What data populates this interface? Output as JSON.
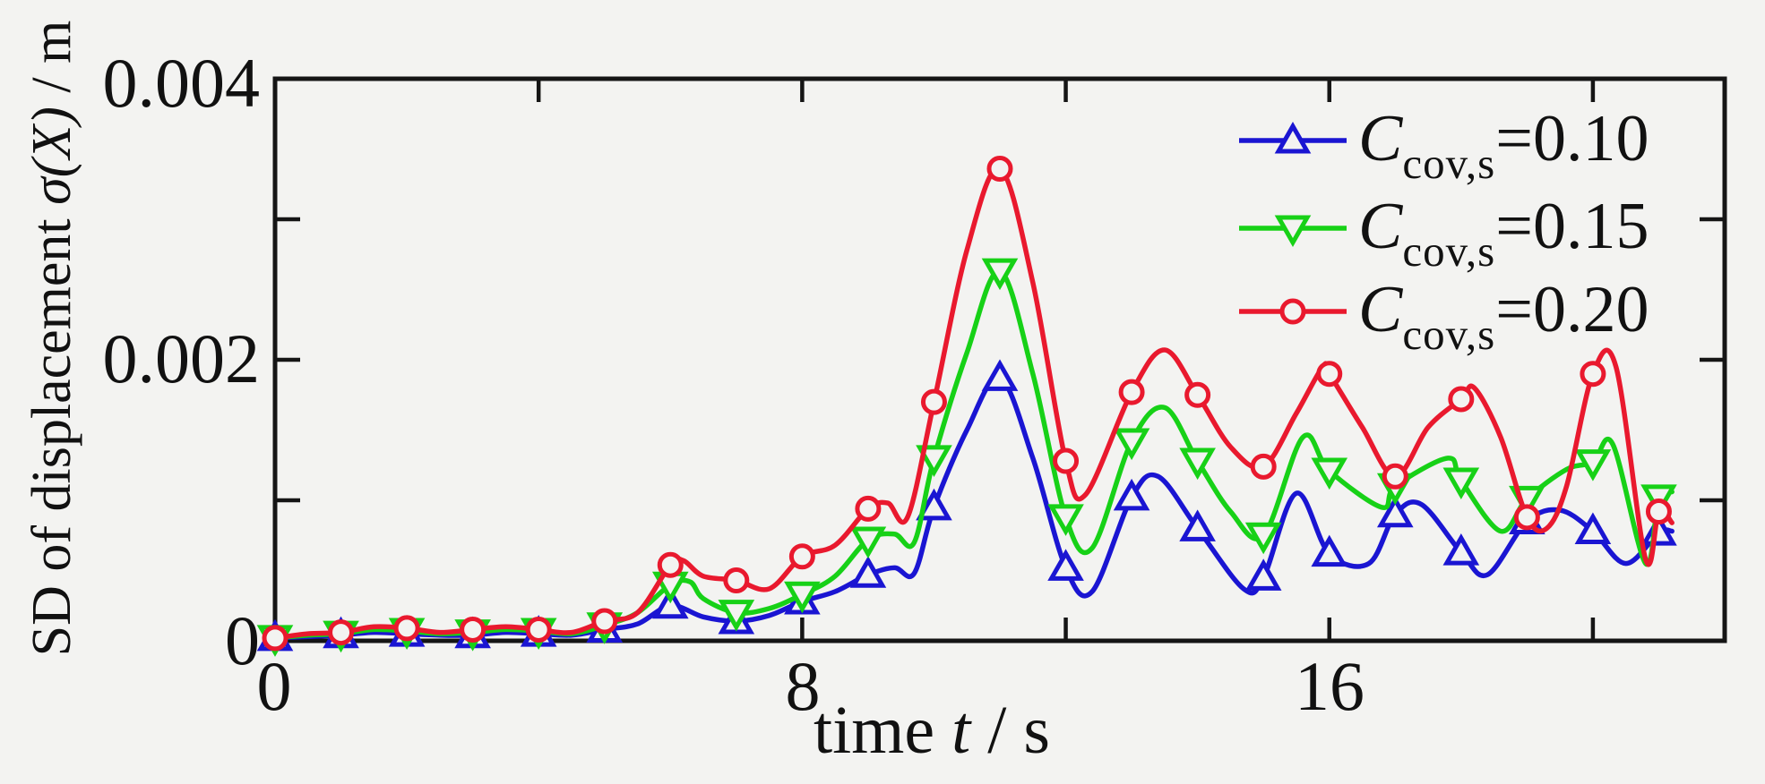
{
  "figure": {
    "background_color": "#f3f3f1",
    "frame_color": "#151515"
  },
  "chart_data": {
    "type": "line",
    "title": "",
    "grid": false,
    "legend_position": "top-right-inside",
    "x_axis": {
      "label_prefix": "time ",
      "label_italic": "t",
      "label_suffix": " / s",
      "min": 0,
      "max": 22,
      "tick_marks_s": [
        4,
        8,
        12,
        16,
        20
      ],
      "tick_labels": [
        {
          "t": 0,
          "text": "0"
        },
        {
          "t": 8,
          "text": "8"
        },
        {
          "t": 16,
          "text": "16"
        }
      ]
    },
    "y_axis": {
      "label_prefix": "SD of displacement ",
      "label_italic": "σ(X)",
      "label_suffix": " / m",
      "min": 0,
      "max": 0.004,
      "tick_marks_1e3": [
        1,
        2,
        3
      ],
      "tick_labels": [
        {
          "v": 0,
          "text": "0"
        },
        {
          "v": 0.002,
          "text": "0.002"
        },
        {
          "v": 0.004,
          "text": "0.004"
        }
      ],
      "unit_note": "series values below are in units of 10^-3 m"
    },
    "marker_interval_s": 1,
    "series": [
      {
        "id": "ccov-0-10",
        "legend_c": "C",
        "legend_sub": "cov,s",
        "legend_eq": "=0.10",
        "color": "#1a15d2",
        "marker": "triangle-up",
        "marker_values_1e3": [
          0.02,
          0.04,
          0.05,
          0.04,
          0.05,
          0.08,
          0.25,
          0.14,
          0.28,
          0.47,
          0.95,
          1.87,
          0.52,
          1.02,
          0.8,
          0.45,
          0.62,
          0.9,
          0.63,
          0.85,
          0.78,
          0.77
        ],
        "line_points_1e3": [
          [
            0,
            0.02
          ],
          [
            0.5,
            0.03
          ],
          [
            1,
            0.04
          ],
          [
            1.5,
            0.06
          ],
          [
            2,
            0.05
          ],
          [
            2.5,
            0.04
          ],
          [
            3,
            0.04
          ],
          [
            3.5,
            0.06
          ],
          [
            4,
            0.05
          ],
          [
            4.5,
            0.04
          ],
          [
            5,
            0.08
          ],
          [
            5.5,
            0.12
          ],
          [
            6,
            0.25
          ],
          [
            6.5,
            0.17
          ],
          [
            7,
            0.14
          ],
          [
            7.5,
            0.18
          ],
          [
            8,
            0.28
          ],
          [
            8.5,
            0.35
          ],
          [
            9,
            0.47
          ],
          [
            9.4,
            0.52
          ],
          [
            9.7,
            0.48
          ],
          [
            10,
            0.95
          ],
          [
            10.5,
            1.5
          ],
          [
            11,
            1.87
          ],
          [
            11.5,
            1.3
          ],
          [
            12,
            0.52
          ],
          [
            12.4,
            0.35
          ],
          [
            13,
            1.02
          ],
          [
            13.4,
            1.17
          ],
          [
            14,
            0.8
          ],
          [
            14.7,
            0.37
          ],
          [
            15,
            0.45
          ],
          [
            15.5,
            1.05
          ],
          [
            16,
            0.62
          ],
          [
            16.6,
            0.55
          ],
          [
            17,
            0.9
          ],
          [
            17.4,
            0.97
          ],
          [
            18,
            0.63
          ],
          [
            18.4,
            0.47
          ],
          [
            19,
            0.85
          ],
          [
            19.5,
            0.93
          ],
          [
            20,
            0.78
          ],
          [
            20.5,
            0.55
          ],
          [
            21,
            0.77
          ],
          [
            21.2,
            0.78
          ]
        ]
      },
      {
        "id": "ccov-0-15",
        "legend_c": "C",
        "legend_sub": "cov,s",
        "legend_eq": "=0.15",
        "color": "#17d117",
        "marker": "triangle-down",
        "marker_values_1e3": [
          0.02,
          0.05,
          0.07,
          0.06,
          0.07,
          0.11,
          0.4,
          0.2,
          0.33,
          0.72,
          1.3,
          2.63,
          0.88,
          1.42,
          1.28,
          0.75,
          1.21,
          1.1,
          1.14,
          1.01,
          1.27,
          1.02
        ],
        "line_points_1e3": [
          [
            0,
            0.02
          ],
          [
            0.5,
            0.04
          ],
          [
            1,
            0.05
          ],
          [
            1.5,
            0.08
          ],
          [
            2,
            0.07
          ],
          [
            2.5,
            0.05
          ],
          [
            3,
            0.06
          ],
          [
            3.5,
            0.08
          ],
          [
            4,
            0.07
          ],
          [
            4.5,
            0.05
          ],
          [
            5,
            0.11
          ],
          [
            5.5,
            0.2
          ],
          [
            6,
            0.4
          ],
          [
            6.3,
            0.42
          ],
          [
            6.5,
            0.3
          ],
          [
            7,
            0.2
          ],
          [
            7.5,
            0.23
          ],
          [
            8,
            0.33
          ],
          [
            8.5,
            0.46
          ],
          [
            9,
            0.72
          ],
          [
            9.4,
            0.76
          ],
          [
            9.7,
            0.7
          ],
          [
            10,
            1.3
          ],
          [
            10.5,
            2.05
          ],
          [
            11,
            2.63
          ],
          [
            11.5,
            1.9
          ],
          [
            12,
            0.88
          ],
          [
            12.4,
            0.66
          ],
          [
            13,
            1.42
          ],
          [
            13.5,
            1.66
          ],
          [
            14,
            1.28
          ],
          [
            14.5,
            0.92
          ],
          [
            15,
            0.75
          ],
          [
            15.6,
            1.45
          ],
          [
            16,
            1.21
          ],
          [
            16.8,
            0.95
          ],
          [
            17,
            1.1
          ],
          [
            17.8,
            1.3
          ],
          [
            18,
            1.14
          ],
          [
            18.6,
            0.78
          ],
          [
            19,
            1.01
          ],
          [
            19.6,
            1.22
          ],
          [
            20,
            1.27
          ],
          [
            20.3,
            1.4
          ],
          [
            20.8,
            0.55
          ],
          [
            21,
            1.02
          ],
          [
            21.2,
            1.06
          ]
        ]
      },
      {
        "id": "ccov-0-20",
        "legend_c": "C",
        "legend_sub": "cov,s",
        "legend_eq": "=0.20",
        "color": "#e9192e",
        "marker": "circle",
        "marker_values_1e3": [
          0.02,
          0.06,
          0.09,
          0.08,
          0.08,
          0.14,
          0.54,
          0.43,
          0.6,
          0.94,
          1.7,
          3.36,
          1.28,
          1.77,
          1.75,
          1.24,
          1.9,
          1.17,
          1.72,
          0.88,
          1.9,
          0.92
        ],
        "line_points_1e3": [
          [
            0,
            0.02
          ],
          [
            0.5,
            0.05
          ],
          [
            1,
            0.06
          ],
          [
            1.5,
            0.1
          ],
          [
            2,
            0.09
          ],
          [
            2.5,
            0.06
          ],
          [
            3,
            0.08
          ],
          [
            3.5,
            0.1
          ],
          [
            4,
            0.08
          ],
          [
            4.5,
            0.06
          ],
          [
            5,
            0.14
          ],
          [
            5.5,
            0.2
          ],
          [
            6,
            0.54
          ],
          [
            6.2,
            0.57
          ],
          [
            6.5,
            0.46
          ],
          [
            7,
            0.43
          ],
          [
            7.5,
            0.37
          ],
          [
            8,
            0.6
          ],
          [
            8.5,
            0.68
          ],
          [
            9,
            0.94
          ],
          [
            9.3,
            0.98
          ],
          [
            9.6,
            0.88
          ],
          [
            10,
            1.7
          ],
          [
            10.5,
            2.78
          ],
          [
            11,
            3.36
          ],
          [
            11.5,
            2.55
          ],
          [
            12,
            1.28
          ],
          [
            12.3,
            1.04
          ],
          [
            13,
            1.77
          ],
          [
            13.5,
            2.07
          ],
          [
            14,
            1.75
          ],
          [
            14.5,
            1.38
          ],
          [
            15,
            1.24
          ],
          [
            15.5,
            1.62
          ],
          [
            15.9,
            1.95
          ],
          [
            16,
            1.9
          ],
          [
            16.5,
            1.52
          ],
          [
            17,
            1.17
          ],
          [
            17.5,
            1.52
          ],
          [
            18,
            1.72
          ],
          [
            18.2,
            1.8
          ],
          [
            18.6,
            1.45
          ],
          [
            19,
            0.88
          ],
          [
            19.3,
            0.8
          ],
          [
            19.6,
            1.1
          ],
          [
            20,
            1.9
          ],
          [
            20.35,
            1.95
          ],
          [
            20.8,
            0.58
          ],
          [
            21,
            0.92
          ],
          [
            21.2,
            0.84
          ]
        ]
      }
    ]
  }
}
